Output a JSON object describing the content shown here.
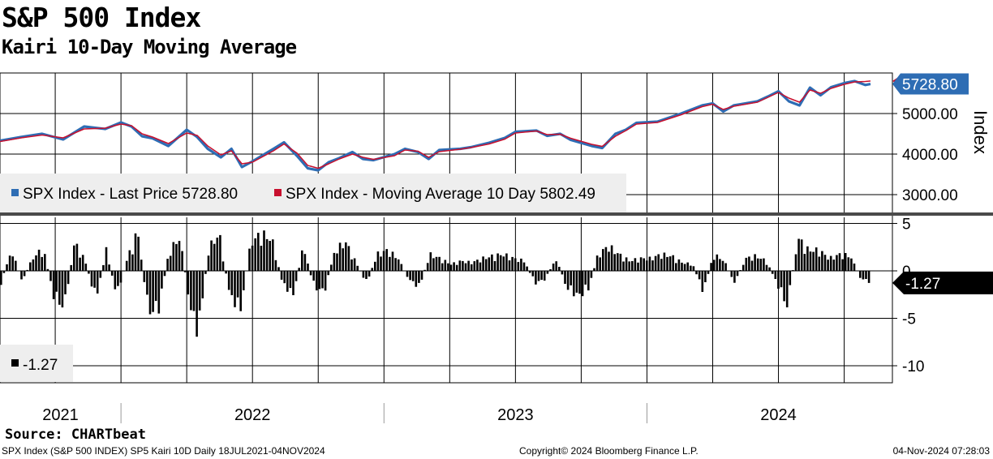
{
  "header": {
    "title": "S&P 500 Index",
    "subtitle": "Kairi 10-Day Moving Average"
  },
  "colors": {
    "price": "#2e6db4",
    "ma": "#c8102e",
    "kairi": "#000000",
    "grid": "#000000",
    "divider": "#4a4a4a"
  },
  "chart_data": [
    {
      "type": "line",
      "title": "S&P 500 Index",
      "ylabel": "Index",
      "ylim": [
        2600,
        6000
      ],
      "yticks": [
        {
          "value": 5000,
          "label": "5000.00"
        },
        {
          "value": 4000,
          "label": "4000.00"
        },
        {
          "value": 3000,
          "label": "3000.00"
        }
      ],
      "x_start": 2021.54,
      "x_end": 2024.85,
      "series": [
        {
          "name": "SPX Index - Last Price",
          "legend": "SPX Index - Last Price 5728.80",
          "last": 5728.8,
          "last_label": "5728.80",
          "points": [
            [
              2021.54,
              4330
            ],
            [
              2021.62,
              4420
            ],
            [
              2021.7,
              4500
            ],
            [
              2021.78,
              4360
            ],
            [
              2021.86,
              4680
            ],
            [
              2021.94,
              4620
            ],
            [
              2022.0,
              4780
            ],
            [
              2022.04,
              4680
            ],
            [
              2022.08,
              4440
            ],
            [
              2022.12,
              4390
            ],
            [
              2022.18,
              4200
            ],
            [
              2022.25,
              4600
            ],
            [
              2022.29,
              4420
            ],
            [
              2022.33,
              4130
            ],
            [
              2022.38,
              3920
            ],
            [
              2022.42,
              4130
            ],
            [
              2022.46,
              3680
            ],
            [
              2022.5,
              3820
            ],
            [
              2022.58,
              4130
            ],
            [
              2022.62,
              4290
            ],
            [
              2022.67,
              3950
            ],
            [
              2022.71,
              3650
            ],
            [
              2022.75,
              3600
            ],
            [
              2022.79,
              3800
            ],
            [
              2022.83,
              3900
            ],
            [
              2022.88,
              4050
            ],
            [
              2022.92,
              3880
            ],
            [
              2022.96,
              3850
            ],
            [
              2023.04,
              4000
            ],
            [
              2023.08,
              4130
            ],
            [
              2023.13,
              4050
            ],
            [
              2023.17,
              3880
            ],
            [
              2023.21,
              4100
            ],
            [
              2023.29,
              4130
            ],
            [
              2023.33,
              4170
            ],
            [
              2023.4,
              4280
            ],
            [
              2023.46,
              4400
            ],
            [
              2023.5,
              4550
            ],
            [
              2023.58,
              4580
            ],
            [
              2023.62,
              4450
            ],
            [
              2023.67,
              4500
            ],
            [
              2023.71,
              4350
            ],
            [
              2023.79,
              4200
            ],
            [
              2023.83,
              4150
            ],
            [
              2023.88,
              4500
            ],
            [
              2023.92,
              4600
            ],
            [
              2023.96,
              4770
            ],
            [
              2024.04,
              4800
            ],
            [
              2024.13,
              5000
            ],
            [
              2024.21,
              5200
            ],
            [
              2024.25,
              5250
            ],
            [
              2024.29,
              5050
            ],
            [
              2024.33,
              5200
            ],
            [
              2024.42,
              5300
            ],
            [
              2024.46,
              5420
            ],
            [
              2024.5,
              5550
            ],
            [
              2024.54,
              5300
            ],
            [
              2024.58,
              5200
            ],
            [
              2024.62,
              5640
            ],
            [
              2024.66,
              5450
            ],
            [
              2024.7,
              5650
            ],
            [
              2024.75,
              5750
            ],
            [
              2024.79,
              5800
            ],
            [
              2024.83,
              5705
            ],
            [
              2024.85,
              5728.8
            ]
          ]
        },
        {
          "name": "SPX Index - Moving Average 10 Day",
          "legend": "SPX Index - Moving Average 10 Day 5802.49",
          "last": 5802.49,
          "points": [
            [
              2021.54,
              4310
            ],
            [
              2021.62,
              4400
            ],
            [
              2021.7,
              4470
            ],
            [
              2021.78,
              4400
            ],
            [
              2021.86,
              4620
            ],
            [
              2021.94,
              4640
            ],
            [
              2022.0,
              4740
            ],
            [
              2022.04,
              4700
            ],
            [
              2022.08,
              4500
            ],
            [
              2022.12,
              4420
            ],
            [
              2022.18,
              4260
            ],
            [
              2022.25,
              4520
            ],
            [
              2022.29,
              4460
            ],
            [
              2022.33,
              4200
            ],
            [
              2022.38,
              3980
            ],
            [
              2022.42,
              4080
            ],
            [
              2022.46,
              3760
            ],
            [
              2022.5,
              3800
            ],
            [
              2022.58,
              4080
            ],
            [
              2022.62,
              4250
            ],
            [
              2022.67,
              4020
            ],
            [
              2022.71,
              3720
            ],
            [
              2022.75,
              3650
            ],
            [
              2022.79,
              3760
            ],
            [
              2022.83,
              3880
            ],
            [
              2022.88,
              4000
            ],
            [
              2022.92,
              3920
            ],
            [
              2022.96,
              3870
            ],
            [
              2023.04,
              3960
            ],
            [
              2023.08,
              4100
            ],
            [
              2023.13,
              4070
            ],
            [
              2023.17,
              3920
            ],
            [
              2023.21,
              4060
            ],
            [
              2023.29,
              4120
            ],
            [
              2023.33,
              4160
            ],
            [
              2023.4,
              4250
            ],
            [
              2023.46,
              4370
            ],
            [
              2023.5,
              4520
            ],
            [
              2023.58,
              4570
            ],
            [
              2023.62,
              4480
            ],
            [
              2023.67,
              4490
            ],
            [
              2023.71,
              4390
            ],
            [
              2023.79,
              4240
            ],
            [
              2023.83,
              4190
            ],
            [
              2023.88,
              4440
            ],
            [
              2023.92,
              4580
            ],
            [
              2023.96,
              4740
            ],
            [
              2024.04,
              4780
            ],
            [
              2024.13,
              4970
            ],
            [
              2024.21,
              5170
            ],
            [
              2024.25,
              5230
            ],
            [
              2024.29,
              5100
            ],
            [
              2024.33,
              5180
            ],
            [
              2024.42,
              5280
            ],
            [
              2024.46,
              5400
            ],
            [
              2024.5,
              5520
            ],
            [
              2024.54,
              5380
            ],
            [
              2024.58,
              5280
            ],
            [
              2024.62,
              5580
            ],
            [
              2024.66,
              5500
            ],
            [
              2024.7,
              5620
            ],
            [
              2024.75,
              5720
            ],
            [
              2024.79,
              5780
            ],
            [
              2024.83,
              5790
            ],
            [
              2024.85,
              5802.49
            ]
          ]
        }
      ]
    },
    {
      "type": "bar",
      "title": "SP5 Kairi 10D",
      "ylim": [
        -11.5,
        5.5
      ],
      "yticks": [
        {
          "value": 5,
          "label": "5"
        },
        {
          "value": 0,
          "label": "0"
        },
        {
          "value": -5,
          "label": "-5"
        },
        {
          "value": -10,
          "label": "-10"
        }
      ],
      "series": [
        {
          "name": "Kairi",
          "legend": "-1.27",
          "last": -1.27,
          "last_label": "-1.27",
          "anchors": [
            [
              2021.54,
              -1.5
            ],
            [
              2021.58,
              2.5
            ],
            [
              2021.62,
              -1.2
            ],
            [
              2021.66,
              1.5
            ],
            [
              2021.7,
              2.8
            ],
            [
              2021.74,
              -3.0
            ],
            [
              2021.78,
              -4.5
            ],
            [
              2021.82,
              3.5
            ],
            [
              2021.86,
              1.2
            ],
            [
              2021.9,
              -3.5
            ],
            [
              2021.94,
              2.5
            ],
            [
              2021.98,
              -3.0
            ],
            [
              2022.02,
              1.5
            ],
            [
              2022.06,
              4.8
            ],
            [
              2022.1,
              -5.0
            ],
            [
              2022.14,
              -4.5
            ],
            [
              2022.18,
              2.5
            ],
            [
              2022.22,
              4.0
            ],
            [
              2022.26,
              -4.5
            ],
            [
              2022.29,
              -7.5
            ],
            [
              2022.33,
              2.8
            ],
            [
              2022.37,
              4.5
            ],
            [
              2022.41,
              -3.0
            ],
            [
              2022.45,
              -4.8
            ],
            [
              2022.49,
              3.5
            ],
            [
              2022.53,
              4.5
            ],
            [
              2022.57,
              3.8
            ],
            [
              2022.61,
              -1.5
            ],
            [
              2022.65,
              -3.0
            ],
            [
              2022.69,
              3.0
            ],
            [
              2022.73,
              -2.0
            ],
            [
              2022.77,
              -2.5
            ],
            [
              2022.81,
              2.5
            ],
            [
              2022.85,
              3.5
            ],
            [
              2022.89,
              1.0
            ],
            [
              2022.93,
              -1.5
            ],
            [
              2022.97,
              2.0
            ],
            [
              2023.01,
              2.5
            ],
            [
              2023.05,
              1.5
            ],
            [
              2023.09,
              -1.0
            ],
            [
              2023.13,
              -2.0
            ],
            [
              2023.17,
              2.0
            ],
            [
              2023.21,
              1.5
            ],
            [
              2023.25,
              0.8
            ],
            [
              2023.29,
              1.2
            ],
            [
              2023.33,
              1.0
            ],
            [
              2023.37,
              1.5
            ],
            [
              2023.41,
              1.8
            ],
            [
              2023.45,
              2.0
            ],
            [
              2023.49,
              1.5
            ],
            [
              2023.53,
              1.2
            ],
            [
              2023.57,
              -1.5
            ],
            [
              2023.61,
              -1.0
            ],
            [
              2023.65,
              1.5
            ],
            [
              2023.69,
              -2.0
            ],
            [
              2023.73,
              -3.0
            ],
            [
              2023.77,
              -2.5
            ],
            [
              2023.81,
              2.0
            ],
            [
              2023.85,
              3.0
            ],
            [
              2023.89,
              2.0
            ],
            [
              2023.93,
              1.2
            ],
            [
              2023.97,
              1.5
            ],
            [
              2024.01,
              1.5
            ],
            [
              2024.05,
              2.0
            ],
            [
              2024.09,
              1.8
            ],
            [
              2024.13,
              1.0
            ],
            [
              2024.17,
              0.8
            ],
            [
              2024.21,
              -2.5
            ],
            [
              2024.25,
              2.0
            ],
            [
              2024.29,
              1.2
            ],
            [
              2024.33,
              -1.5
            ],
            [
              2024.37,
              1.5
            ],
            [
              2024.41,
              1.8
            ],
            [
              2024.45,
              1.2
            ],
            [
              2024.49,
              -1.5
            ],
            [
              2024.53,
              -4.3
            ],
            [
              2024.57,
              4.0
            ],
            [
              2024.61,
              2.5
            ],
            [
              2024.65,
              2.5
            ],
            [
              2024.69,
              1.5
            ],
            [
              2024.73,
              2.0
            ],
            [
              2024.77,
              1.8
            ],
            [
              2024.81,
              -1.0
            ],
            [
              2024.85,
              -1.27
            ]
          ]
        }
      ]
    }
  ],
  "xaxis": {
    "labels": [
      {
        "value": 2021.77,
        "label": "2021"
      },
      {
        "value": 2022.5,
        "label": "2022"
      },
      {
        "value": 2023.5,
        "label": "2023"
      },
      {
        "value": 2024.5,
        "label": "2024"
      }
    ],
    "year_breaks": [
      2022.0,
      2023.0,
      2024.0
    ],
    "grid_quarters": [
      2021.75,
      2022.0,
      2022.25,
      2022.5,
      2022.75,
      2023.0,
      2023.25,
      2023.5,
      2023.75,
      2024.0,
      2024.25,
      2024.5,
      2024.75
    ]
  },
  "footer": {
    "source": "Source: CHARTbeat",
    "left": "SPX Index (S&P 500 INDEX) SP5 Kairi 10D  Daily 18JUL2021-04NOV2024",
    "middle": "Copyright© 2024 Bloomberg Finance L.P.",
    "right": "04-Nov-2024 07:28:03"
  }
}
